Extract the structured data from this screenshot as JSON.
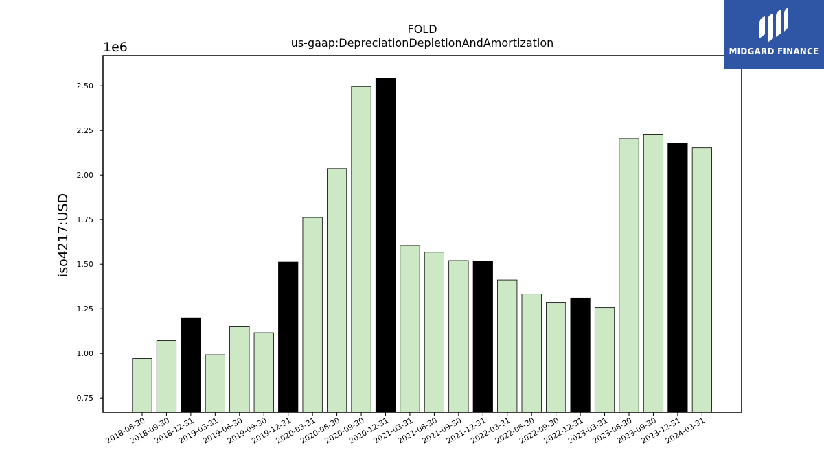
{
  "chart_data": {
    "type": "bar",
    "title": "FOLD",
    "subtitle": "us-gaap:DepreciationDepletionAndAmortization",
    "xlabel": "",
    "ylabel": "iso4217:USD",
    "y_scale_label": "1e6",
    "ylim": [
      0.67,
      2.67
    ],
    "yticks": [
      "0.75",
      "1.00",
      "1.25",
      "1.50",
      "1.75",
      "2.00",
      "2.25",
      "2.50"
    ],
    "ytick_values": [
      0.75,
      1.0,
      1.25,
      1.5,
      1.75,
      2.0,
      2.25,
      2.5
    ],
    "categories": [
      "2018-06-30",
      "2018-09-30",
      "2018-12-31",
      "2019-03-31",
      "2019-06-30",
      "2019-09-30",
      "2019-12-31",
      "2020-03-31",
      "2020-06-30",
      "2020-09-30",
      "2020-12-31",
      "2021-03-31",
      "2021-06-30",
      "2021-09-30",
      "2021-12-31",
      "2022-03-31",
      "2022-06-30",
      "2022-09-30",
      "2022-12-31",
      "2023-03-31",
      "2023-06-30",
      "2023-09-30",
      "2023-12-31",
      "2024-03-31"
    ],
    "values": [
      0.972,
      1.072,
      1.2,
      0.993,
      1.153,
      1.116,
      1.512,
      1.762,
      2.036,
      2.496,
      2.545,
      1.605,
      1.567,
      1.52,
      1.515,
      1.412,
      1.333,
      1.283,
      1.311,
      1.256,
      2.205,
      2.226,
      2.179,
      2.152
    ],
    "bar_colors": [
      "#cde8c5",
      "#cde8c5",
      "#000000",
      "#cde8c5",
      "#cde8c5",
      "#cde8c5",
      "#000000",
      "#cde8c5",
      "#cde8c5",
      "#cde8c5",
      "#000000",
      "#cde8c5",
      "#cde8c5",
      "#cde8c5",
      "#000000",
      "#cde8c5",
      "#cde8c5",
      "#cde8c5",
      "#000000",
      "#cde8c5",
      "#cde8c5",
      "#cde8c5",
      "#000000",
      "#cde8c5"
    ],
    "grid": false,
    "legend": "none"
  },
  "logo": {
    "text": "MIDGARD FINANCE",
    "background": "#2f55a5"
  }
}
